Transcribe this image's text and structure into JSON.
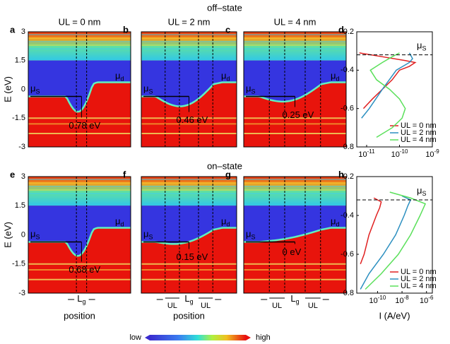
{
  "figure": {
    "off_state": "off–state",
    "on_state": "on–state",
    "colorbar": {
      "low": "low",
      "high": "high"
    }
  },
  "chart_data": [
    {
      "type": "heatmap",
      "label": "a",
      "title": "UL = 0 nm",
      "ylabel": "E (eV)",
      "ylim": [
        -3,
        3
      ],
      "yticks": [
        3,
        1.5,
        0,
        -1.5,
        -3
      ],
      "annotation": "0.78 eV",
      "mu": "μ",
      "mu_s_sub": "S",
      "mu_d_sub": "d"
    },
    {
      "type": "heatmap",
      "label": "b",
      "title": "UL = 2 nm",
      "ylim": [
        -3,
        3
      ],
      "annotation": "0.46 eV",
      "mu": "μ",
      "mu_s_sub": "S",
      "mu_d_sub": "d"
    },
    {
      "type": "heatmap",
      "label": "c",
      "title": "UL = 4 nm",
      "ylim": [
        -3,
        3
      ],
      "annotation": "0.25 eV",
      "mu": "μ",
      "mu_s_sub": "S",
      "mu_d_sub": "d"
    },
    {
      "type": "line",
      "label": "d",
      "ylim": [
        -0.8,
        -0.2
      ],
      "yticks": [
        -0.2,
        -0.4,
        -0.6,
        -0.8
      ],
      "xlog": true,
      "xlim": [
        5e-12,
        1e-09
      ],
      "xticks": [
        {
          "value": 1e-11,
          "label": "10",
          "exponent": "-11"
        },
        {
          "value": 1e-10,
          "label": "10",
          "exponent": "-10"
        },
        {
          "value": 1e-09,
          "label": "10",
          "exponent": "-9"
        }
      ],
      "mu": "μ",
      "mu_sub": "S",
      "mu_level": -0.32,
      "legend": "lower right",
      "series": [
        {
          "name": "UL = 0 nm",
          "color": "#e02020",
          "energy": [
            -0.31,
            -0.33,
            -0.35,
            -0.36,
            -0.38,
            -0.4,
            -0.45,
            -0.5,
            -0.55,
            -0.6
          ],
          "values": [
            6e-12,
            3e-11,
            1.5e-10,
            3e-10,
            2e-10,
            1e-10,
            6e-11,
            3e-11,
            1.5e-11,
            8e-12
          ]
        },
        {
          "name": "UL = 2 nm",
          "color": "#2b8fc0",
          "energy": [
            -0.31,
            -0.34,
            -0.36,
            -0.4,
            -0.5,
            -0.6,
            -0.65
          ],
          "values": [
            2e-10,
            2.5e-10,
            2e-10,
            8e-11,
            3e-11,
            1.2e-11,
            7e-12
          ]
        },
        {
          "name": "UL = 4 nm",
          "color": "#5be05b",
          "energy": [
            -0.31,
            -0.33,
            -0.36,
            -0.4,
            -0.45,
            -0.5,
            -0.55,
            -0.6,
            -0.65,
            -0.7,
            -0.75
          ],
          "values": [
            1e-10,
            6e-11,
            3e-11,
            1.3e-11,
            2e-11,
            5e-11,
            1e-10,
            1.5e-10,
            1.2e-10,
            6e-11,
            2e-11
          ]
        }
      ]
    },
    {
      "type": "heatmap",
      "label": "e",
      "ylabel": "E (eV)",
      "ylim": [
        -3,
        3
      ],
      "yticks": [
        3,
        1.5,
        0,
        -1.5,
        -3
      ],
      "annotation": "0.68 eV",
      "mu": "μ",
      "mu_s_sub": "S",
      "mu_d_sub": "d",
      "xlabel": "position",
      "gate_label": "L",
      "gate_sub": "g"
    },
    {
      "type": "heatmap",
      "label": "f",
      "ylim": [
        -3,
        3
      ],
      "annotation": "0.15 eV",
      "mu": "μ",
      "mu_s_sub": "S",
      "mu_d_sub": "d",
      "xlabel": "position",
      "gate_label": "L",
      "gate_sub": "g",
      "ul_labels": [
        "UL",
        "UL"
      ]
    },
    {
      "type": "heatmap",
      "label": "g",
      "ylim": [
        -3,
        3
      ],
      "annotation": "0 eV",
      "mu": "μ",
      "mu_s_sub": "S",
      "mu_d_sub": "d",
      "gate_label": "L",
      "gate_sub": "g",
      "ul_labels": [
        "UL",
        "UL"
      ]
    },
    {
      "type": "line",
      "label": "h",
      "ylim": [
        -0.8,
        -0.2
      ],
      "yticks": [
        -0.2,
        -0.4,
        -0.6,
        -0.8
      ],
      "xlog": true,
      "xlim": [
        2e-12,
        3e-06
      ],
      "xlabel": "I (A/eV)",
      "xticks": [
        {
          "value": 1e-10,
          "label": "10",
          "exponent": "-10"
        },
        {
          "value": 1e-08,
          "label": "10",
          "exponent": "-8"
        },
        {
          "value": 1e-06,
          "label": "10",
          "exponent": "-6"
        }
      ],
      "mu": "μ",
      "mu_sub": "S",
      "mu_level": -0.32,
      "legend": "lower right",
      "series": [
        {
          "name": "UL = 0 nm",
          "color": "#e02020",
          "energy": [
            -0.31,
            -0.33,
            -0.36,
            -0.4,
            -0.5,
            -0.6,
            -0.65
          ],
          "values": [
            5e-11,
            2e-10,
            1.5e-10,
            8e-11,
            2e-11,
            8e-12,
            4e-12
          ]
        },
        {
          "name": "UL = 2 nm",
          "color": "#2b8fc0",
          "energy": [
            -0.3,
            -0.32,
            -0.35,
            -0.4,
            -0.5,
            -0.6,
            -0.7,
            -0.78
          ],
          "values": [
            1e-08,
            5e-08,
            3e-08,
            1.5e-08,
            3e-09,
            3e-10,
            2e-11,
            4e-12
          ]
        },
        {
          "name": "UL = 4 nm",
          "color": "#5be05b",
          "energy": [
            -0.28,
            -0.31,
            -0.34,
            -0.4,
            -0.5,
            -0.6,
            -0.7,
            -0.78
          ],
          "values": [
            1e-09,
            5e-08,
            8e-07,
            3e-07,
            5e-08,
            5e-09,
            2e-10,
            1e-11
          ]
        }
      ]
    }
  ]
}
